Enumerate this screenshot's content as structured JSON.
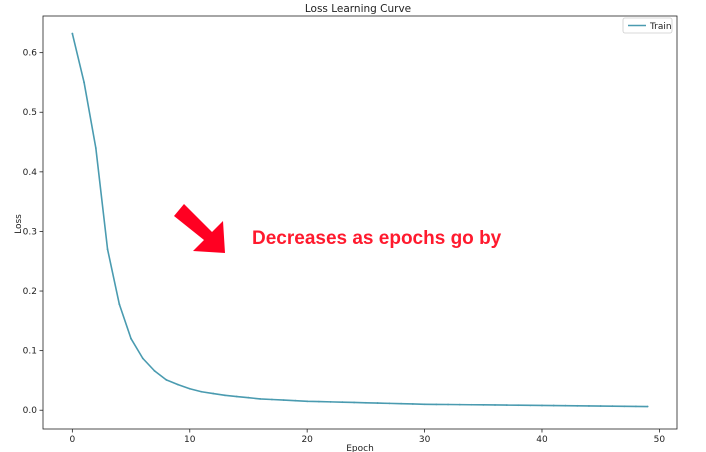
{
  "chart_data": {
    "type": "line",
    "title": "Loss Learning Curve",
    "xlabel": "Epoch",
    "ylabel": "Loss",
    "xlim": [
      -2.5,
      51.5
    ],
    "ylim": [
      -0.0315,
      0.6615
    ],
    "xticks": [
      0,
      10,
      20,
      30,
      40,
      50
    ],
    "yticks": [
      0.0,
      0.1,
      0.2,
      0.3,
      0.4,
      0.5,
      0.6
    ],
    "xtick_labels": [
      "0",
      "10",
      "20",
      "30",
      "40",
      "50"
    ],
    "ytick_labels": [
      "0.0",
      "0.1",
      "0.2",
      "0.3",
      "0.4",
      "0.5",
      "0.6"
    ],
    "grid": false,
    "legend_position": "top-right",
    "series": [
      {
        "name": "Train",
        "color": "#4a9bb0",
        "x": [
          0,
          1,
          2,
          3,
          4,
          5,
          6,
          7,
          8,
          9,
          10,
          11,
          12,
          13,
          14,
          15,
          16,
          17,
          18,
          19,
          20,
          21,
          22,
          23,
          24,
          25,
          26,
          27,
          28,
          29,
          30,
          31,
          32,
          33,
          34,
          35,
          36,
          37,
          38,
          39,
          40,
          41,
          42,
          43,
          44,
          45,
          46,
          47,
          48,
          49
        ],
        "values": [
          0.632,
          0.55,
          0.44,
          0.27,
          0.178,
          0.12,
          0.087,
          0.066,
          0.051,
          0.043,
          0.036,
          0.031,
          0.028,
          0.025,
          0.023,
          0.021,
          0.019,
          0.018,
          0.017,
          0.016,
          0.015,
          0.0145,
          0.014,
          0.0135,
          0.013,
          0.0125,
          0.012,
          0.0115,
          0.011,
          0.0105,
          0.01,
          0.0098,
          0.0096,
          0.0094,
          0.0092,
          0.009,
          0.0088,
          0.0086,
          0.0084,
          0.0082,
          0.008,
          0.0078,
          0.0076,
          0.0074,
          0.0072,
          0.007,
          0.0068,
          0.0066,
          0.0064,
          0.0062
        ]
      }
    ],
    "annotation": {
      "text": "Decreases as epochs go by",
      "color": "#ff1a2e",
      "arrow_color": "#ff0022"
    }
  }
}
